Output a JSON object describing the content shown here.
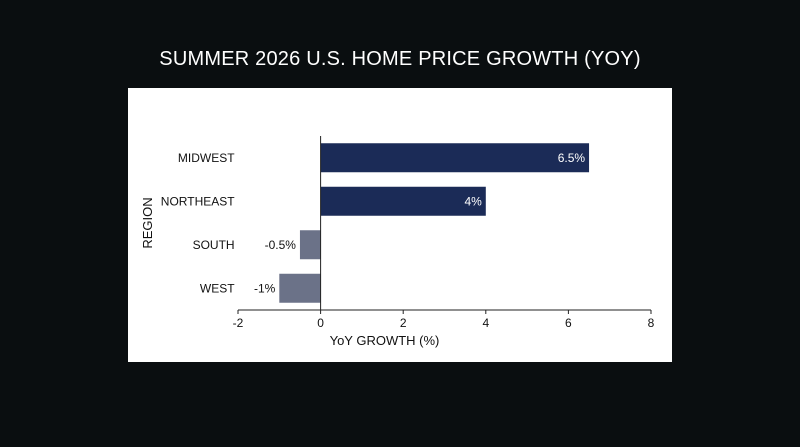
{
  "colors": {
    "background": "#0a0e10",
    "panel": "#ffffff",
    "positive_bar": "#1b2b57",
    "negative_bar": "#6b7288",
    "axis": "#222222",
    "text": "#111111",
    "title_text": "#ffffff"
  },
  "chart_data": {
    "type": "bar",
    "orientation": "horizontal",
    "title": "SUMMER 2026 U.S. HOME PRICE GROWTH (YOY)",
    "xlabel": "YoY GROWTH (%)",
    "ylabel": "REGION",
    "categories": [
      "MIDWEST",
      "NORTHEAST",
      "SOUTH",
      "WEST"
    ],
    "values": [
      6.5,
      4,
      -0.5,
      -1
    ],
    "data_labels": [
      "6.5%",
      "4%",
      "-0.5%",
      "-1%"
    ],
    "xlim": [
      -2,
      8
    ],
    "xticks": [
      -2,
      0,
      2,
      4,
      6,
      8
    ],
    "xtick_labels": [
      "-2",
      "0",
      "2",
      "4",
      "6",
      "8"
    ],
    "grid": false,
    "legend": "none"
  }
}
